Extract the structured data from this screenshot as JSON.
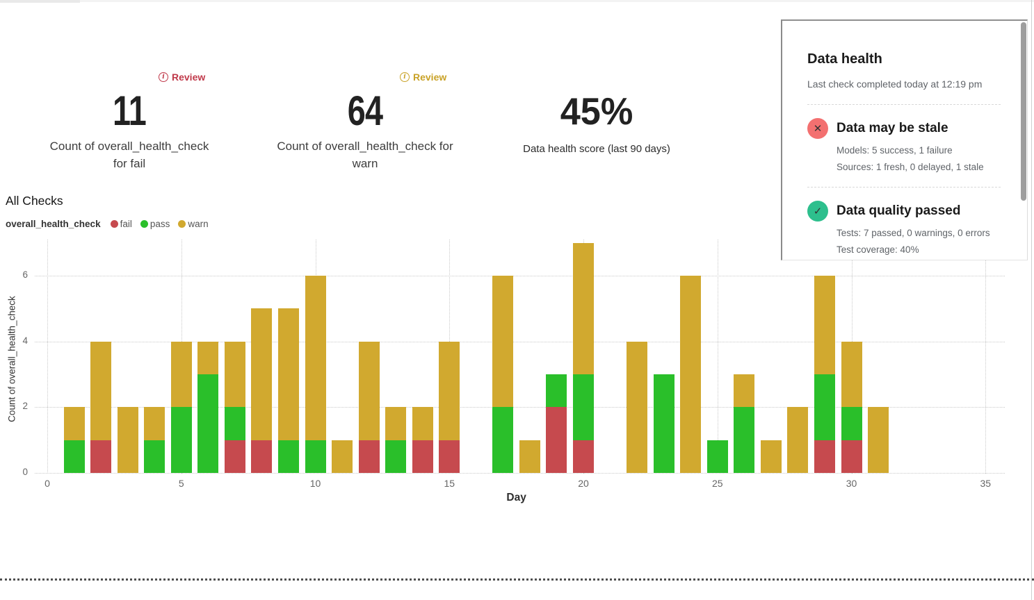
{
  "metrics": [
    {
      "badge_label": "Review",
      "badge_color": "#c0394a",
      "value": "11",
      "caption_line1": "Count of overall_health_check",
      "caption_line2": "for fail"
    },
    {
      "badge_label": "Review",
      "badge_color": "#c9a227",
      "value": "64",
      "caption_line1": "Count of overall_health_check for",
      "caption_line2": "warn"
    },
    {
      "value": "45%",
      "caption": "Data health score (last 90 days)"
    }
  ],
  "chart": {
    "section_title": "All Checks",
    "legend_title": "overall_health_check",
    "legend": [
      {
        "label": "fail",
        "color": "#c64a4e"
      },
      {
        "label": "pass",
        "color": "#2abf2a"
      },
      {
        "label": "warn",
        "color": "#d1a92f"
      }
    ]
  },
  "chart_data": {
    "type": "bar",
    "stacked": true,
    "title": "All Checks",
    "xlabel": "Day",
    "ylabel": "Count of overall_health_check",
    "x": [
      1,
      2,
      3,
      4,
      5,
      6,
      7,
      8,
      9,
      10,
      11,
      12,
      13,
      14,
      15,
      16,
      17,
      18,
      19,
      20,
      21,
      22,
      23,
      24,
      25,
      26,
      27,
      28,
      29,
      30,
      31
    ],
    "series": [
      {
        "name": "fail",
        "color": "#c64a4e",
        "values": [
          0,
          1,
          0,
          0,
          0,
          0,
          1,
          1,
          0,
          0,
          0,
          1,
          0,
          1,
          1,
          0,
          0,
          0,
          2,
          1,
          0,
          0,
          0,
          0,
          0,
          0,
          0,
          0,
          1,
          1,
          0
        ]
      },
      {
        "name": "pass",
        "color": "#2abf2a",
        "values": [
          1,
          0,
          0,
          1,
          2,
          3,
          1,
          0,
          1,
          1,
          0,
          0,
          1,
          0,
          0,
          0,
          2,
          0,
          1,
          2,
          0,
          0,
          3,
          0,
          1,
          2,
          0,
          0,
          2,
          1,
          0
        ]
      },
      {
        "name": "warn",
        "color": "#d1a92f",
        "values": [
          1,
          3,
          2,
          1,
          2,
          1,
          2,
          4,
          4,
          5,
          1,
          3,
          1,
          1,
          3,
          0,
          4,
          1,
          0,
          4,
          0,
          4,
          0,
          6,
          0,
          1,
          1,
          2,
          3,
          2,
          2
        ]
      }
    ],
    "xticks": [
      0,
      5,
      10,
      15,
      20,
      25,
      30,
      35
    ],
    "yticks": [
      0,
      2,
      4,
      6
    ],
    "xlim": [
      0,
      35.5
    ],
    "ylim": [
      0,
      7.3
    ],
    "grid": true,
    "legend_position": "top-left"
  },
  "health_panel": {
    "title": "Data health",
    "subtitle": "Last check completed today at 12:19 pm",
    "items": [
      {
        "icon": "x-circle",
        "icon_glyph": "✕",
        "icon_color": "#f37070",
        "title": "Data may be stale",
        "line1": "Models: 5 success, 1 failure",
        "line2": "Sources: 1 fresh, 0 delayed, 1 stale"
      },
      {
        "icon": "check-circle",
        "icon_glyph": "✓",
        "icon_color": "#2dbf8d",
        "title": "Data quality passed",
        "line1": "Tests: 7 passed, 0 warnings, 0 errors",
        "line2": "Test coverage: 40%"
      }
    ]
  }
}
